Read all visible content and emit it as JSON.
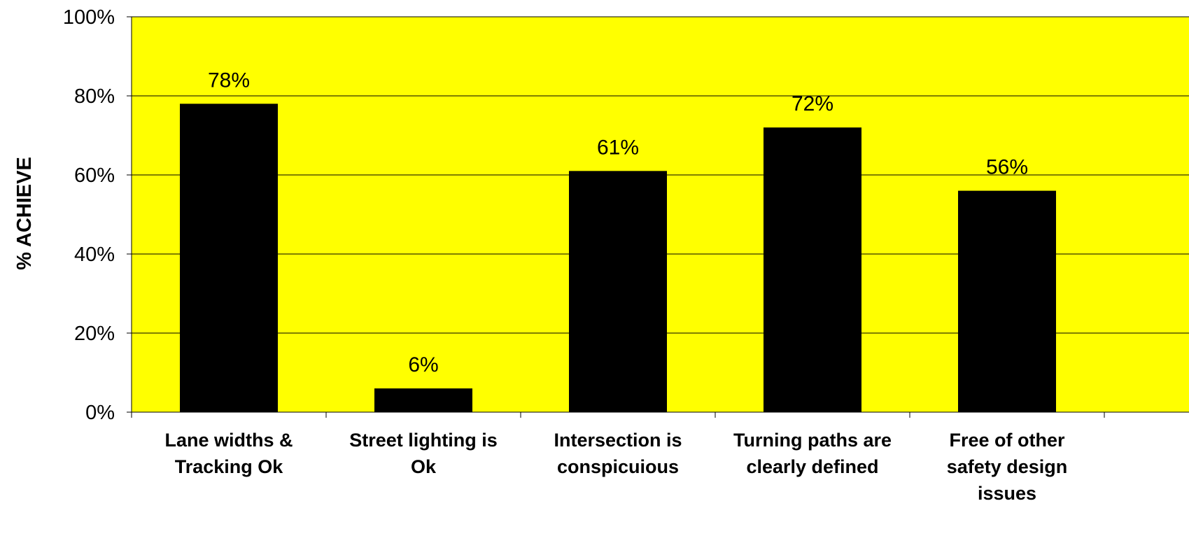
{
  "chart_data": {
    "type": "bar",
    "categories": [
      [
        "Lane widths &",
        "Tracking Ok"
      ],
      [
        "Street lighting is",
        "Ok"
      ],
      [
        "Intersection is",
        "conspicuious"
      ],
      [
        "Turning paths are",
        "clearly defined"
      ],
      [
        "Free of other",
        "safety design",
        "issues"
      ]
    ],
    "values": [
      78,
      6,
      61,
      72,
      56
    ],
    "data_labels": [
      "78%",
      "6%",
      "61%",
      "72%",
      "56%"
    ],
    "ylabel": "% ACHIEVE",
    "ylim": [
      0,
      100
    ],
    "yticks": [
      "0%",
      "20%",
      "40%",
      "60%",
      "80%",
      "100%"
    ],
    "grid": true,
    "colors": {
      "plot_background": "#ffff00",
      "bars": "#000000",
      "gridlines": "#000000"
    }
  }
}
